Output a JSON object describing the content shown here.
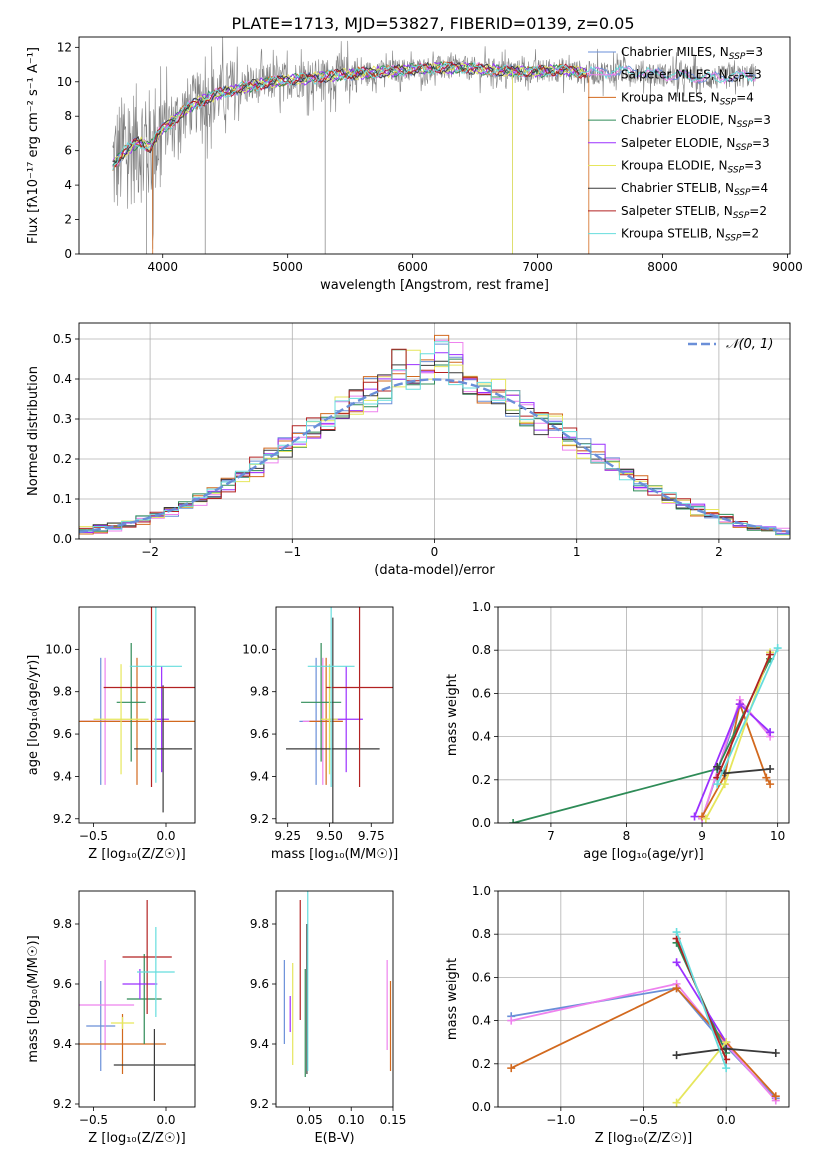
{
  "figure": {
    "title": "PLATE=1713, MJD=53827, FIBERID=0139, z=0.05"
  },
  "colors": [
    "#6a8fd8",
    "#ee82ee",
    "#d2691e",
    "#2e8b57",
    "#9b30ff",
    "#e6e65c",
    "#3a3a3a",
    "#b22222",
    "#66dddd"
  ],
  "chart_data": [
    {
      "id": "spectrum",
      "type": "line",
      "xlabel": "wavelength [Angstrom, rest frame]",
      "ylabel": "Flux [fλ10⁻¹⁷ erg cm⁻² s⁻¹ A⁻¹]",
      "xlim": [
        3330,
        9020
      ],
      "ylim": [
        0,
        12.6
      ],
      "xticks": [
        4000,
        5000,
        6000,
        7000,
        8000,
        9000
      ],
      "yticks": [
        0,
        2,
        4,
        6,
        8,
        10,
        12
      ],
      "grid": false,
      "legend": "right",
      "legend_entries": [
        {
          "label": "Chabrier MILES, N",
          "sub": "SSP",
          "suffix": "=3"
        },
        {
          "label": "Salpeter MILES, N",
          "sub": "SSP",
          "suffix": "=3"
        },
        {
          "label": "Kroupa MILES, N",
          "sub": "SSP",
          "suffix": "=4"
        },
        {
          "label": "Chabrier ELODIE, N",
          "sub": "SSP",
          "suffix": "=3"
        },
        {
          "label": "Salpeter ELODIE, N",
          "sub": "SSP",
          "suffix": "=3"
        },
        {
          "label": "Kroupa ELODIE, N",
          "sub": "SSP",
          "suffix": "=3"
        },
        {
          "label": "Chabrier STELIB, N",
          "sub": "SSP",
          "suffix": "=4"
        },
        {
          "label": "Salpeter STELIB, N",
          "sub": "SSP",
          "suffix": "=2"
        },
        {
          "label": "Kroupa STELIB, N",
          "sub": "SSP",
          "suffix": "=2"
        }
      ],
      "continuum": {
        "x": [
          3600,
          3700,
          3800,
          3900,
          4000,
          4100,
          4200,
          4400,
          4600,
          4800,
          5000,
          5200,
          5400,
          5600,
          5800,
          6000,
          6200,
          6400,
          6600,
          6800,
          7000,
          7200,
          7400,
          7600,
          7800,
          8000,
          8200,
          8400,
          8600,
          8750
        ],
        "y": [
          5.2,
          6.0,
          6.5,
          6.2,
          7.3,
          7.8,
          8.5,
          9.2,
          9.6,
          9.9,
          10.1,
          10.2,
          10.4,
          10.5,
          10.6,
          10.7,
          10.8,
          10.8,
          10.7,
          10.6,
          10.6,
          10.7,
          10.5,
          10.6,
          10.6,
          10.4,
          10.3,
          10.2,
          10.3,
          10.4
        ]
      }
    },
    {
      "id": "residuals",
      "type": "line",
      "xlabel": "(data-model)/error",
      "ylabel": "Normed distribution",
      "xlim": [
        -2.5,
        2.5
      ],
      "ylim": [
        0,
        0.54
      ],
      "xticks": [
        -2,
        -1,
        0,
        1,
        2
      ],
      "yticks": [
        0.0,
        0.1,
        0.2,
        0.3,
        0.4,
        0.5
      ],
      "grid": true,
      "legend": "top-right",
      "normal_label": "𝒩(0, 1)",
      "bin_width": 0.1
    },
    {
      "id": "age-vs-Z",
      "type": "scatter",
      "xlabel": "Z [log₁₀(Z/Z☉)]",
      "ylabel": "age  [log₁₀(age/yr)]",
      "xlim": [
        -0.6,
        0.2
      ],
      "ylim": [
        9.18,
        10.2
      ],
      "xticks": [
        -0.5,
        0.0
      ],
      "yticks": [
        9.2,
        9.4,
        9.6,
        9.8,
        10.0
      ],
      "points": [
        {
          "x": -0.45,
          "y": 9.66,
          "xerr": 0.14,
          "yerr": 0.3
        },
        {
          "x": -0.42,
          "y": 9.66,
          "xerr": 0.17,
          "yerr": 0.3
        },
        {
          "x": -0.2,
          "y": 9.66,
          "xerr": 0.4,
          "yerr": 0.3
        },
        {
          "x": -0.24,
          "y": 9.75,
          "xerr": 0.1,
          "yerr": 0.28
        },
        {
          "x": -0.03,
          "y": 9.67,
          "xerr": 0.05,
          "yerr": 0.25
        },
        {
          "x": -0.31,
          "y": 9.67,
          "xerr": 0.19,
          "yerr": 0.26
        },
        {
          "x": -0.02,
          "y": 9.53,
          "xerr": 0.2,
          "yerr": 0.3
        },
        {
          "x": -0.1,
          "y": 9.82,
          "xerr": 0.33,
          "yerr": 0.47
        },
        {
          "x": -0.07,
          "y": 9.92,
          "xerr": 0.18,
          "yerr": 0.55
        }
      ]
    },
    {
      "id": "age-vs-mass",
      "type": "scatter",
      "xlabel": "mass [log₁₀(M/M☉)]",
      "ylabel": "",
      "xlim": [
        9.18,
        9.88
      ],
      "ylim": [
        9.18,
        10.2
      ],
      "xticks": [
        9.25,
        9.5,
        9.75
      ],
      "yticks": [
        9.2,
        9.4,
        9.6,
        9.8,
        10.0
      ],
      "points": [
        {
          "x": 9.42,
          "y": 9.66,
          "xerr": 0.1,
          "yerr": 0.3
        },
        {
          "x": 9.46,
          "y": 9.66,
          "xerr": 0.12,
          "yerr": 0.3
        },
        {
          "x": 9.48,
          "y": 9.66,
          "xerr": 0.1,
          "yerr": 0.3
        },
        {
          "x": 9.45,
          "y": 9.75,
          "xerr": 0.12,
          "yerr": 0.28
        },
        {
          "x": 9.6,
          "y": 9.67,
          "xerr": 0.1,
          "yerr": 0.25
        },
        {
          "x": 9.5,
          "y": 9.67,
          "xerr": 0.05,
          "yerr": 0.26
        },
        {
          "x": 9.52,
          "y": 9.53,
          "xerr": 0.28,
          "yerr": 0.62
        },
        {
          "x": 9.68,
          "y": 9.82,
          "xerr": 0.2,
          "yerr": 0.47
        },
        {
          "x": 9.51,
          "y": 9.92,
          "xerr": 0.14,
          "yerr": 0.57
        }
      ]
    },
    {
      "id": "mass-weight-vs-age",
      "type": "line",
      "xlabel": "age  [log₁₀(age/yr)]",
      "ylabel": "mass weight",
      "xlim": [
        6.3,
        10.15
      ],
      "ylim": [
        0,
        1.0
      ],
      "xticks": [
        7,
        8,
        9,
        10
      ],
      "yticks": [
        0.0,
        0.2,
        0.4,
        0.6,
        0.8,
        1.0
      ],
      "grid": true,
      "series": [
        {
          "x": [
            9.0,
            9.5,
            9.9
          ],
          "y": [
            0.02,
            0.55,
            0.42
          ]
        },
        {
          "x": [
            9.0,
            9.5,
            9.9
          ],
          "y": [
            0.02,
            0.57,
            0.4
          ]
        },
        {
          "x": [
            9.0,
            9.3,
            9.5,
            9.85,
            9.9
          ],
          "y": [
            0.03,
            0.22,
            0.55,
            0.21,
            0.18
          ]
        },
        {
          "x": [
            6.5,
            9.2,
            9.9
          ],
          "y": [
            0.0,
            0.25,
            0.76
          ]
        },
        {
          "x": [
            8.9,
            9.5,
            9.9
          ],
          "y": [
            0.03,
            0.55,
            0.42
          ]
        },
        {
          "x": [
            9.05,
            9.3,
            9.9
          ],
          "y": [
            0.02,
            0.18,
            0.79
          ]
        },
        {
          "x": [
            9.2,
            9.3,
            9.9
          ],
          "y": [
            0.26,
            0.23,
            0.25
          ]
        },
        {
          "x": [
            9.2,
            9.9
          ],
          "y": [
            0.21,
            0.78
          ]
        },
        {
          "x": [
            9.2,
            10.0
          ],
          "y": [
            0.18,
            0.81
          ]
        }
      ]
    },
    {
      "id": "mass-vs-Z",
      "type": "scatter",
      "xlabel": "Z [log₁₀(Z/Z☉)]",
      "ylabel": "mass [log₁₀(M/M☉)]",
      "xlim": [
        -0.6,
        0.2
      ],
      "ylim": [
        9.19,
        9.91
      ],
      "xticks": [
        -0.5,
        0.0
      ],
      "yticks": [
        9.2,
        9.4,
        9.6,
        9.8
      ],
      "points": [
        {
          "x": -0.45,
          "y": 9.46,
          "xerr": 0.1,
          "yerr": 0.15
        },
        {
          "x": -0.42,
          "y": 9.53,
          "xerr": 0.2,
          "yerr": 0.15
        },
        {
          "x": -0.3,
          "y": 9.4,
          "xerr": 0.3,
          "yerr": 0.1
        },
        {
          "x": -0.15,
          "y": 9.55,
          "xerr": 0.12,
          "yerr": 0.15
        },
        {
          "x": -0.18,
          "y": 9.6,
          "xerr": 0.12,
          "yerr": 0.05
        },
        {
          "x": -0.3,
          "y": 9.47,
          "xerr": 0.08,
          "yerr": 0.02
        },
        {
          "x": -0.08,
          "y": 9.33,
          "xerr": 0.28,
          "yerr": 0.12
        },
        {
          "x": -0.13,
          "y": 9.69,
          "xerr": 0.17,
          "yerr": 0.19
        },
        {
          "x": -0.07,
          "y": 9.64,
          "xerr": 0.13,
          "yerr": 0.15
        }
      ]
    },
    {
      "id": "mass-vs-EBV",
      "type": "scatter",
      "xlabel": "E(B-V)",
      "ylabel": "",
      "xlim": [
        0.01,
        0.15
      ],
      "ylim": [
        9.19,
        9.91
      ],
      "xticks": [
        0.05,
        0.1,
        0.15
      ],
      "yticks": [
        9.2,
        9.4,
        9.6,
        9.8
      ],
      "points": [
        {
          "x": 0.02,
          "y": 9.54,
          "yerr": 0.14
        },
        {
          "x": 0.143,
          "y": 9.53,
          "yerr": 0.15
        },
        {
          "x": 0.147,
          "y": 9.46,
          "yerr": 0.15
        },
        {
          "x": 0.045,
          "y": 9.47,
          "yerr": 0.18
        },
        {
          "x": 0.027,
          "y": 9.5,
          "yerr": 0.06
        },
        {
          "x": 0.03,
          "y": 9.5,
          "yerr": 0.17
        },
        {
          "x": 0.047,
          "y": 9.55,
          "yerr": 0.25
        },
        {
          "x": 0.039,
          "y": 9.68,
          "yerr": 0.2
        },
        {
          "x": 0.048,
          "y": 9.61,
          "yerr": 0.3
        }
      ]
    },
    {
      "id": "mass-weight-vs-Z",
      "type": "line",
      "xlabel": "Z [log₁₀(Z/Z☉)]",
      "ylabel": "mass weight",
      "xlim": [
        -1.38,
        0.38
      ],
      "ylim": [
        0,
        1.0
      ],
      "xticks": [
        -1.0,
        -0.5,
        0.0
      ],
      "yticks": [
        0.0,
        0.2,
        0.4,
        0.6,
        0.8,
        1.0
      ],
      "grid": true,
      "series": [
        {
          "x": [
            -1.3,
            -0.3,
            0.0,
            0.3
          ],
          "y": [
            0.42,
            0.55,
            0.28,
            0.04
          ]
        },
        {
          "x": [
            -1.3,
            -0.3,
            0.0,
            0.3
          ],
          "y": [
            0.4,
            0.57,
            0.29,
            0.03
          ]
        },
        {
          "x": [
            -1.3,
            -0.3,
            0.0,
            0.3
          ],
          "y": [
            0.18,
            0.55,
            0.3,
            0.05
          ]
        },
        {
          "x": [
            -0.3,
            0.0
          ],
          "y": [
            0.76,
            0.25
          ]
        },
        {
          "x": [
            -0.3,
            0.0
          ],
          "y": [
            0.67,
            0.3
          ]
        },
        {
          "x": [
            -0.3,
            0.0
          ],
          "y": [
            0.02,
            0.3
          ]
        },
        {
          "x": [
            -0.3,
            0.0,
            0.3
          ],
          "y": [
            0.24,
            0.27,
            0.25
          ]
        },
        {
          "x": [
            -0.3,
            0.0
          ],
          "y": [
            0.78,
            0.22
          ]
        },
        {
          "x": [
            -0.3,
            0.0
          ],
          "y": [
            0.81,
            0.18
          ]
        }
      ]
    }
  ]
}
